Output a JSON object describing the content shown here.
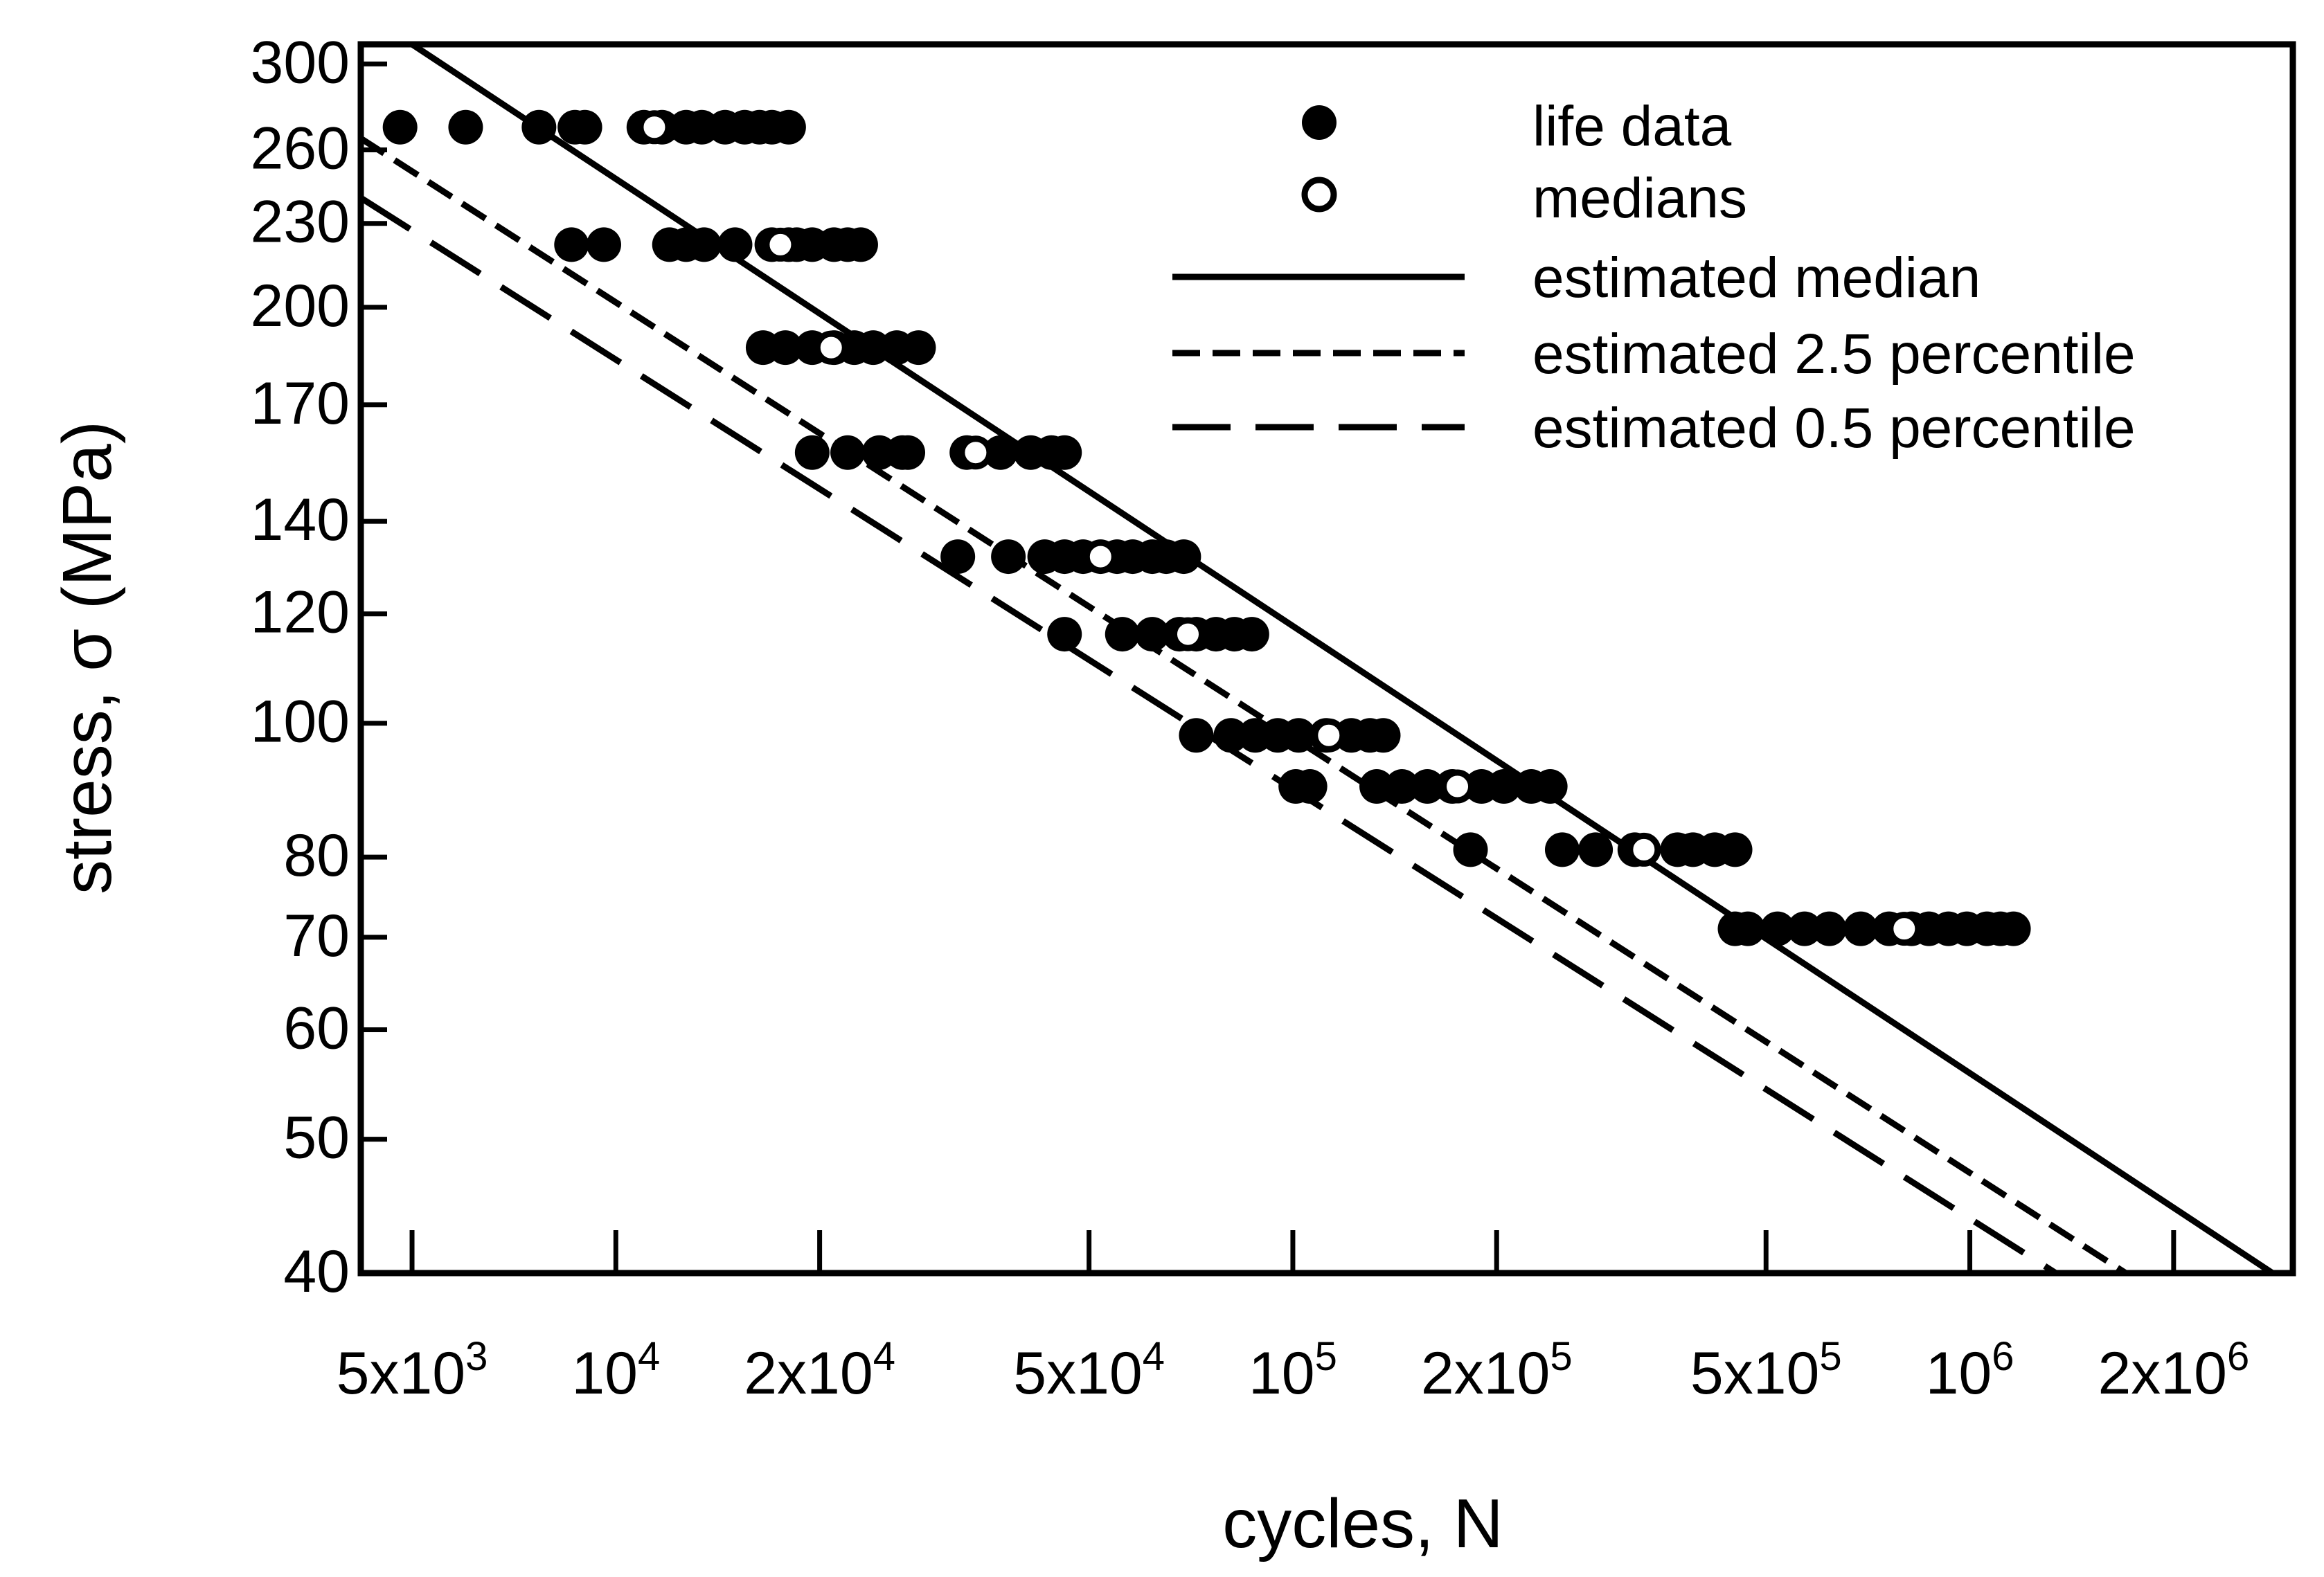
{
  "chart_data": {
    "type": "scatter",
    "title": "",
    "xlabel": "cycles, N",
    "ylabel": "stress, σ (MPa)",
    "x_scale": "log",
    "y_scale": "log",
    "xlim": [
      4200,
      3000000
    ],
    "ylim": [
      40,
      310
    ],
    "x_ticks": [
      {
        "value": 5000,
        "mantissa": "5x10",
        "exp": "3"
      },
      {
        "value": 10000,
        "mantissa": "10",
        "exp": "4"
      },
      {
        "value": 20000,
        "mantissa": "2x10",
        "exp": "4"
      },
      {
        "value": 50000,
        "mantissa": "5x10",
        "exp": "4"
      },
      {
        "value": 100000,
        "mantissa": "10",
        "exp": "5"
      },
      {
        "value": 200000,
        "mantissa": "2x10",
        "exp": "5"
      },
      {
        "value": 500000,
        "mantissa": "5x10",
        "exp": "5"
      },
      {
        "value": 1000000,
        "mantissa": "10",
        "exp": "6"
      },
      {
        "value": 2000000,
        "mantissa": "2x10",
        "exp": "6"
      }
    ],
    "y_ticks": [
      {
        "value": 40,
        "label": "40"
      },
      {
        "value": 50,
        "label": "50"
      },
      {
        "value": 60,
        "label": "60"
      },
      {
        "value": 70,
        "label": "70"
      },
      {
        "value": 80,
        "label": "80"
      },
      {
        "value": 100,
        "label": "100"
      },
      {
        "value": 120,
        "label": "120"
      },
      {
        "value": 140,
        "label": "140"
      },
      {
        "value": 170,
        "label": "170"
      },
      {
        "value": 200,
        "label": "200"
      },
      {
        "value": 230,
        "label": "230"
      },
      {
        "value": 260,
        "label": "260"
      },
      {
        "value": 300,
        "label": "300"
      }
    ],
    "legend": {
      "placement": "top-right",
      "entries": [
        {
          "label": "life data",
          "style": "filled-circle"
        },
        {
          "label": "medians",
          "style": "open-circle"
        },
        {
          "label": "estimated median",
          "style": "solid"
        },
        {
          "label": "estimated 2.5 percentile",
          "style": "short-dash"
        },
        {
          "label": "estimated 0.5 percentile",
          "style": "long-dash"
        }
      ]
    },
    "series": [
      {
        "name": "life data",
        "marker": "filled-circle",
        "points": [
          {
            "stress": 270,
            "cycles": [
              4800,
              6000,
              7700,
              8700,
              9000,
              11000,
              11700,
              12700,
              13400,
              14500,
              15500,
              16300,
              17000,
              18000
            ]
          },
          {
            "stress": 222,
            "cycles": [
              8600,
              9600,
              12000,
              12700,
              13500,
              15000,
              17000,
              18000,
              18500,
              19500,
              21000,
              22000,
              23000
            ]
          },
          {
            "stress": 187,
            "cycles": [
              16500,
              17800,
              19500,
              21000,
              22500,
              24000,
              26000,
              28000
            ]
          },
          {
            "stress": 157,
            "cycles": [
              19500,
              22000,
              24500,
              26500,
              27000,
              33000,
              37000,
              41000,
              44000,
              46000
            ]
          },
          {
            "stress": 132,
            "cycles": [
              32000,
              38000,
              43000,
              46000,
              49000,
              52000,
              55000,
              58000,
              62000,
              65000,
              69000
            ]
          },
          {
            "stress": 116,
            "cycles": [
              46000,
              56000,
              62000,
              68000,
              72000,
              77000,
              82000,
              87000
            ]
          },
          {
            "stress": 98,
            "cycles": [
              72000,
              81000,
              88000,
              95000,
              102000,
              112000,
              122000,
              130000,
              136000
            ]
          },
          {
            "stress": 90,
            "cycles": [
              101000,
              106000,
              133000,
              145000,
              158000,
              172000,
              190000,
              205000,
              225000,
              240000
            ]
          },
          {
            "stress": 81,
            "cycles": [
              183000,
              250000,
              280000,
              320000,
              370000,
              390000,
              420000,
              450000
            ]
          },
          {
            "stress": 71,
            "cycles": [
              450000,
              470000,
              520000,
              570000,
              620000,
              690000,
              760000,
              820000,
              870000,
              930000,
              990000,
              1060000,
              1110000,
              1160000
            ]
          }
        ]
      },
      {
        "name": "medians",
        "marker": "open-circle",
        "points": [
          {
            "stress": 270,
            "cycles": 11400
          },
          {
            "stress": 222,
            "cycles": 17500
          },
          {
            "stress": 187,
            "cycles": 20800
          },
          {
            "stress": 157,
            "cycles": 34000
          },
          {
            "stress": 132,
            "cycles": 52000
          },
          {
            "stress": 116,
            "cycles": 70000
          },
          {
            "stress": 98,
            "cycles": 113000
          },
          {
            "stress": 90,
            "cycles": 175000
          },
          {
            "stress": 81,
            "cycles": 330000
          },
          {
            "stress": 71,
            "cycles": 800000
          }
        ]
      },
      {
        "name": "estimated median",
        "style": "solid",
        "line": [
          {
            "cycles": 5000,
            "stress": 310
          },
          {
            "cycles": 2800000,
            "stress": 40
          }
        ]
      },
      {
        "name": "estimated 2.5 percentile",
        "style": "short-dash",
        "line": [
          {
            "cycles": 4200,
            "stress": 265
          },
          {
            "cycles": 1700000,
            "stress": 40
          }
        ]
      },
      {
        "name": "estimated 0.5 percentile",
        "style": "long-dash",
        "line": [
          {
            "cycles": 4200,
            "stress": 240
          },
          {
            "cycles": 1340000,
            "stress": 40
          }
        ]
      }
    ]
  }
}
